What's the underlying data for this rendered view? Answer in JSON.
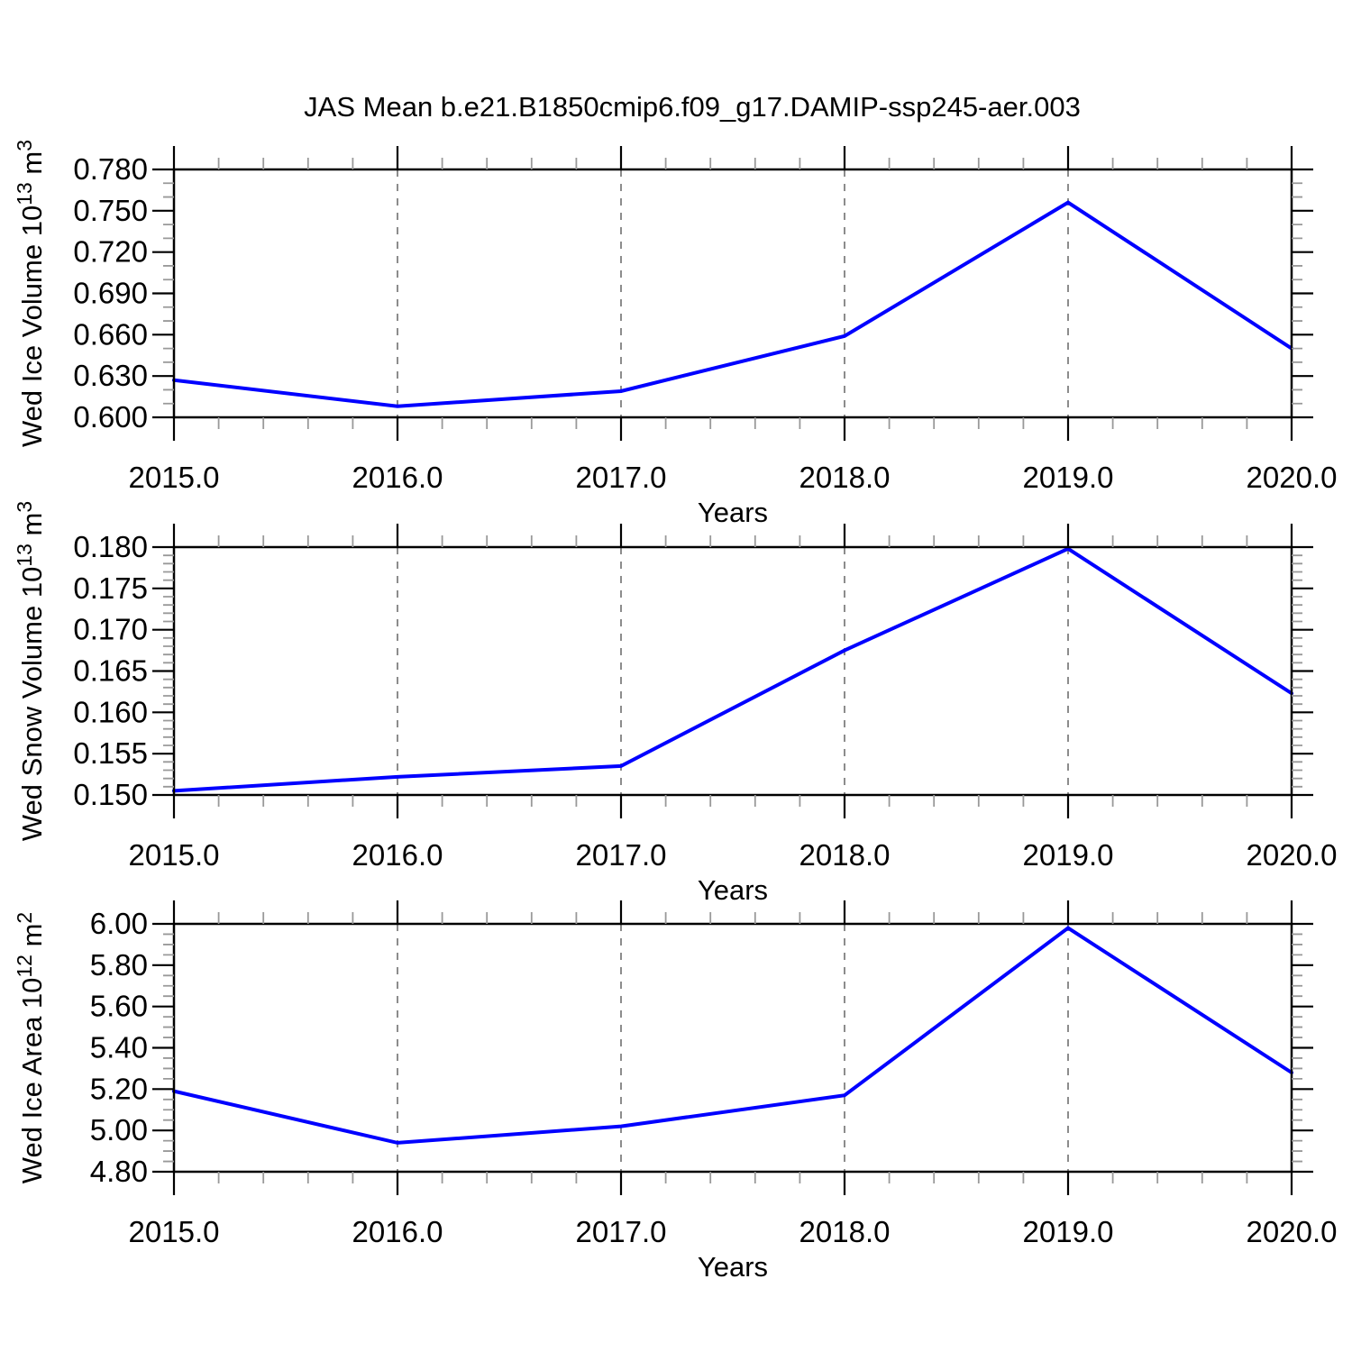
{
  "title": "JAS Mean b.e21.B1850cmip6.f09_g17.DAMIP-ssp245-aer.003",
  "background_color": "#ffffff",
  "colors": {
    "line": "#0000ff",
    "frame": "#000000",
    "major_tick": "#000000",
    "minor_tick": "#999999",
    "gridline": "#7f7f7f",
    "text": "#000000"
  },
  "chart_data": [
    {
      "type": "line",
      "panel": "wed-ice-volume",
      "ylabel": "Wed Ice Volume 10^13 m^3",
      "ylabel_parts": [
        {
          "text": "Wed Ice Volume 10",
          "sup": false
        },
        {
          "text": "13",
          "sup": true
        },
        {
          "text": " m",
          "sup": false
        },
        {
          "text": "3",
          "sup": true
        }
      ],
      "xlabel": "Years",
      "x": [
        2015,
        2016,
        2017,
        2018,
        2019,
        2020
      ],
      "values": [
        0.627,
        0.608,
        0.619,
        0.659,
        0.756,
        0.65
      ],
      "xlim": [
        2015,
        2020
      ],
      "ylim": [
        0.6,
        0.78
      ],
      "xtick_labels": [
        "2015.0",
        "2016.0",
        "2017.0",
        "2018.0",
        "2019.0",
        "2020.0"
      ],
      "ytick_values": [
        0.6,
        0.63,
        0.66,
        0.69,
        0.72,
        0.75,
        0.78
      ],
      "ytick_labels": [
        "0.600",
        "0.630",
        "0.660",
        "0.690",
        "0.720",
        "0.750",
        "0.780"
      ],
      "y_minor_step": 0.01,
      "x_minor_step": 0.2,
      "grid_x": [
        2016,
        2017,
        2018,
        2019
      ],
      "grid_style": "dashed",
      "legend": "none"
    },
    {
      "type": "line",
      "panel": "wed-snow-volume",
      "ylabel": "Wed Snow Volume 10^13 m^3",
      "ylabel_parts": [
        {
          "text": "Wed Snow Volume 10",
          "sup": false
        },
        {
          "text": "13",
          "sup": true
        },
        {
          "text": " m",
          "sup": false
        },
        {
          "text": "3",
          "sup": true
        }
      ],
      "xlabel": "Years",
      "x": [
        2015,
        2016,
        2017,
        2018,
        2019,
        2020
      ],
      "values": [
        0.1505,
        0.1522,
        0.1535,
        0.1675,
        0.1798,
        0.1623
      ],
      "xlim": [
        2015,
        2020
      ],
      "ylim": [
        0.15,
        0.18
      ],
      "xtick_labels": [
        "2015.0",
        "2016.0",
        "2017.0",
        "2018.0",
        "2019.0",
        "2020.0"
      ],
      "ytick_values": [
        0.15,
        0.155,
        0.16,
        0.165,
        0.17,
        0.175,
        0.18
      ],
      "ytick_labels": [
        "0.150",
        "0.155",
        "0.160",
        "0.165",
        "0.170",
        "0.175",
        "0.180"
      ],
      "y_minor_step": 0.001,
      "x_minor_step": 0.2,
      "grid_x": [
        2016,
        2017,
        2018,
        2019
      ],
      "grid_style": "dashed",
      "legend": "none"
    },
    {
      "type": "line",
      "panel": "wed-ice-area",
      "ylabel": "Wed Ice Area 10^12 m^2",
      "ylabel_parts": [
        {
          "text": "Wed Ice Area 10",
          "sup": false
        },
        {
          "text": "12",
          "sup": true
        },
        {
          "text": " m",
          "sup": false
        },
        {
          "text": "2",
          "sup": true
        }
      ],
      "xlabel": "Years",
      "x": [
        2015,
        2016,
        2017,
        2018,
        2019,
        2020
      ],
      "values": [
        5.19,
        4.94,
        5.02,
        5.17,
        5.98,
        5.28
      ],
      "xlim": [
        2015,
        2020
      ],
      "ylim": [
        4.8,
        6.0
      ],
      "xtick_labels": [
        "2015.0",
        "2016.0",
        "2017.0",
        "2018.0",
        "2019.0",
        "2020.0"
      ],
      "ytick_values": [
        4.8,
        5.0,
        5.2,
        5.4,
        5.6,
        5.8,
        6.0
      ],
      "ytick_labels": [
        "4.80",
        "5.00",
        "5.20",
        "5.40",
        "5.60",
        "5.80",
        "6.00"
      ],
      "y_minor_step": 0.05,
      "x_minor_step": 0.2,
      "grid_x": [
        2016,
        2017,
        2018,
        2019
      ],
      "grid_style": "dashed",
      "legend": "none"
    }
  ]
}
